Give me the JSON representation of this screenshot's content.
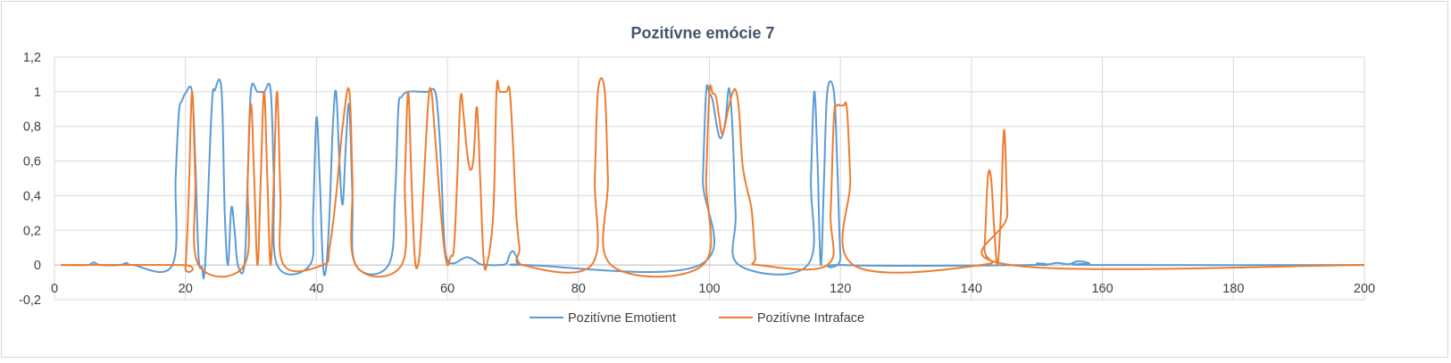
{
  "chart_data": {
    "type": "line",
    "title": "Pozitívne emócie 7",
    "xlabel": "",
    "ylabel": "",
    "xlim": [
      0,
      200
    ],
    "ylim": [
      -0.2,
      1.2
    ],
    "x_ticks": [
      0,
      20,
      40,
      60,
      80,
      100,
      120,
      140,
      160,
      180,
      200
    ],
    "y_ticks": [
      -0.2,
      0,
      0.2,
      0.4,
      0.6,
      0.8,
      1,
      1.2
    ],
    "x_tick_labels": [
      "0",
      "20",
      "40",
      "60",
      "80",
      "100",
      "120",
      "140",
      "160",
      "180",
      "200"
    ],
    "y_tick_labels": [
      "-0,2",
      "0",
      "0,2",
      "0,4",
      "0,6",
      "0,8",
      "1",
      "1,2"
    ],
    "grid": true,
    "legend_position": "bottom",
    "series": [
      {
        "name": "Pozitívne Emotient",
        "color": "#5b9bd5",
        "points": [
          [
            1,
            0
          ],
          [
            5,
            0
          ],
          [
            6,
            0.015
          ],
          [
            7,
            0
          ],
          [
            10,
            0
          ],
          [
            11,
            0.012
          ],
          [
            12,
            0
          ],
          [
            18,
            0
          ],
          [
            18.5,
            0.5
          ],
          [
            19,
            0.88
          ],
          [
            19.5,
            0.95
          ],
          [
            20,
            0.99
          ],
          [
            21,
            1
          ],
          [
            21.5,
            0.6
          ],
          [
            22,
            0.05
          ],
          [
            22.5,
            -0.01
          ],
          [
            23,
            0
          ],
          [
            24,
            0.9
          ],
          [
            24.5,
            1.01
          ],
          [
            25.5,
            1.01
          ],
          [
            26,
            0.3
          ],
          [
            26.5,
            0
          ],
          [
            27,
            0.33
          ],
          [
            27.5,
            0.2
          ],
          [
            28,
            0
          ],
          [
            29,
            0
          ],
          [
            29.5,
            0.5
          ],
          [
            30,
            1.01
          ],
          [
            31,
            1
          ],
          [
            32,
            1
          ],
          [
            33,
            1.01
          ],
          [
            33.5,
            0.5
          ],
          [
            34,
            0
          ],
          [
            39,
            0
          ],
          [
            39.5,
            0.3
          ],
          [
            40,
            0.85
          ],
          [
            40.5,
            0.5
          ],
          [
            41,
            0
          ],
          [
            41.5,
            -0.01
          ],
          [
            42,
            0.3
          ],
          [
            42.5,
            0.8
          ],
          [
            43,
            1
          ],
          [
            43.5,
            0.6
          ],
          [
            44,
            0.35
          ],
          [
            44.5,
            0.7
          ],
          [
            45,
            0.92
          ],
          [
            45.5,
            0.4
          ],
          [
            46,
            0
          ],
          [
            51,
            0
          ],
          [
            52,
            0.4
          ],
          [
            52.5,
            0.9
          ],
          [
            53,
            0.97
          ],
          [
            54,
            1
          ],
          [
            56,
            1
          ],
          [
            57,
            1
          ],
          [
            58,
            1.01
          ],
          [
            58.5,
            0.9
          ],
          [
            59,
            0.6
          ],
          [
            59.5,
            0.15
          ],
          [
            60,
            0.03
          ],
          [
            61,
            0.01
          ],
          [
            62,
            0.03
          ],
          [
            63,
            0.045
          ],
          [
            64,
            0.03
          ],
          [
            65,
            0.005
          ],
          [
            66,
            0
          ],
          [
            68,
            0
          ],
          [
            69,
            0.01
          ],
          [
            69.5,
            0.06
          ],
          [
            70,
            0.08
          ],
          [
            70.5,
            0.05
          ],
          [
            71,
            0.01
          ],
          [
            72,
            0
          ],
          [
            98.5,
            0
          ],
          [
            99,
            0.5
          ],
          [
            99.5,
            1
          ],
          [
            100,
            0.99
          ],
          [
            100.5,
            0.95
          ],
          [
            101,
            0.83
          ],
          [
            101.5,
            0.74
          ],
          [
            102,
            0.75
          ],
          [
            102.5,
            0.85
          ],
          [
            103,
            1.02
          ],
          [
            103.5,
            0.8
          ],
          [
            104,
            0.3
          ],
          [
            104.5,
            0
          ],
          [
            115,
            0
          ],
          [
            115.5,
            0.5
          ],
          [
            116,
            1
          ],
          [
            116.5,
            0.6
          ],
          [
            117,
            0
          ],
          [
            117.5,
            0.5
          ],
          [
            118,
            1
          ],
          [
            119,
            1
          ],
          [
            119.5,
            0.6
          ],
          [
            120,
            0.05
          ],
          [
            120.5,
            0
          ],
          [
            149,
            0
          ],
          [
            150,
            0.01
          ],
          [
            151,
            0
          ],
          [
            152,
            0.005
          ],
          [
            153,
            0.012
          ],
          [
            154,
            0.008
          ],
          [
            155,
            0.005
          ],
          [
            156,
            0.02
          ],
          [
            157,
            0.02
          ],
          [
            158,
            0.01
          ],
          [
            159,
            0
          ],
          [
            200,
            0
          ]
        ]
      },
      {
        "name": "Pozitívne Intraface",
        "color": "#ed7d31",
        "points": [
          [
            1,
            0
          ],
          [
            19.5,
            0
          ],
          [
            20,
            -0.01
          ],
          [
            20.5,
            0.4
          ],
          [
            21,
            1
          ],
          [
            21.5,
            0.5
          ],
          [
            22,
            0
          ],
          [
            29,
            0
          ],
          [
            29.5,
            0.5
          ],
          [
            30,
            0.93
          ],
          [
            30.5,
            0.5
          ],
          [
            31,
            0
          ],
          [
            31.5,
            0.5
          ],
          [
            32,
            1
          ],
          [
            32.5,
            0.5
          ],
          [
            33,
            0
          ],
          [
            33.5,
            0.5
          ],
          [
            34,
            1
          ],
          [
            34.5,
            0.4
          ],
          [
            35,
            0
          ],
          [
            41,
            0
          ],
          [
            42,
            0.1
          ],
          [
            43,
            0.4
          ],
          [
            44,
            0.8
          ],
          [
            45,
            1.01
          ],
          [
            45.5,
            0.5
          ],
          [
            46,
            0
          ],
          [
            53,
            0
          ],
          [
            53.5,
            0.5
          ],
          [
            54,
            1
          ],
          [
            54.5,
            0.5
          ],
          [
            55,
            0.05
          ],
          [
            55.5,
            0
          ],
          [
            56,
            0.2
          ],
          [
            57,
            0.9
          ],
          [
            57.5,
            1.01
          ],
          [
            58,
            0.8
          ],
          [
            59,
            0.3
          ],
          [
            59.5,
            0.1
          ],
          [
            60,
            0
          ],
          [
            60.5,
            0.05
          ],
          [
            61,
            0.1
          ],
          [
            61.5,
            0.5
          ],
          [
            62,
            0.97
          ],
          [
            62.5,
            0.85
          ],
          [
            63,
            0.65
          ],
          [
            63.5,
            0.55
          ],
          [
            64,
            0.62
          ],
          [
            64.5,
            0.91
          ],
          [
            65,
            0.5
          ],
          [
            65.5,
            0.05
          ],
          [
            66,
            0
          ],
          [
            67,
            0.3
          ],
          [
            67.5,
            1.01
          ],
          [
            68,
            1
          ],
          [
            69,
            1
          ],
          [
            69.5,
            1.01
          ],
          [
            70,
            0.7
          ],
          [
            70.5,
            0.3
          ],
          [
            71,
            0.1
          ],
          [
            71.5,
            0
          ],
          [
            82,
            0
          ],
          [
            82.5,
            0.5
          ],
          [
            83,
            1.01
          ],
          [
            84,
            1.01
          ],
          [
            84.5,
            0.5
          ],
          [
            85,
            0
          ],
          [
            99,
            0
          ],
          [
            99.5,
            0.5
          ],
          [
            100,
            1
          ],
          [
            100.5,
            0.99
          ],
          [
            101,
            0.97
          ],
          [
            101.5,
            0.85
          ],
          [
            102,
            0.76
          ],
          [
            103,
            0.92
          ],
          [
            103.5,
            0.99
          ],
          [
            104,
            1.01
          ],
          [
            104.5,
            0.9
          ],
          [
            105,
            0.6
          ],
          [
            105.5,
            0.48
          ],
          [
            106,
            0.4
          ],
          [
            106.5,
            0.3
          ],
          [
            107,
            0.05
          ],
          [
            107.5,
            0
          ],
          [
            118,
            0
          ],
          [
            118.5,
            0.3
          ],
          [
            119,
            0.85
          ],
          [
            119.5,
            0.92
          ],
          [
            120,
            0.92
          ],
          [
            120.5,
            0.92
          ],
          [
            121,
            0.9
          ],
          [
            121.5,
            0.5
          ],
          [
            122,
            0
          ],
          [
            141.5,
            0
          ],
          [
            142,
            0.1
          ],
          [
            142.5,
            0.5
          ],
          [
            143,
            0.5
          ],
          [
            143.5,
            0.2
          ],
          [
            144,
            0
          ],
          [
            144.5,
            0.3
          ],
          [
            145,
            0.78
          ],
          [
            145.5,
            0.3
          ],
          [
            146,
            0
          ],
          [
            200,
            0
          ]
        ]
      }
    ]
  }
}
